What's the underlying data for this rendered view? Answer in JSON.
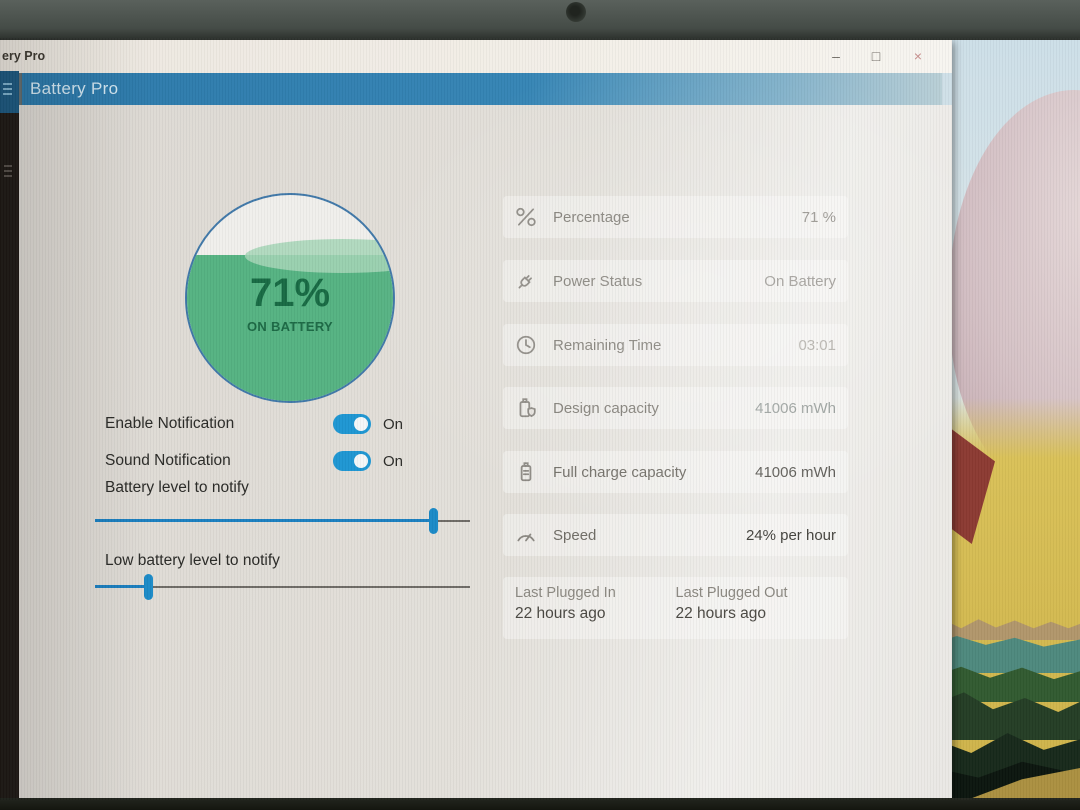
{
  "window": {
    "titlebar_text": "ery Pro",
    "minimize": "–",
    "maximize": "□",
    "close": "×",
    "header_title": "Battery Pro"
  },
  "gauge": {
    "percent": "71%",
    "status": "ON BATTERY",
    "value": 71
  },
  "settings": {
    "toggles": [
      {
        "label": "Enable Notification",
        "state": "On"
      },
      {
        "label": "Sound Notification",
        "state": "On"
      }
    ],
    "sliders": [
      {
        "label": "Battery level to notify",
        "value_pct": 90
      },
      {
        "label": "Low battery level to notify",
        "value_pct": 14
      }
    ]
  },
  "stats": {
    "rows": [
      {
        "icon": "percent-icon",
        "label": "Percentage",
        "value": "71 %"
      },
      {
        "icon": "plug-icon",
        "label": "Power Status",
        "value": "On Battery"
      },
      {
        "icon": "clock-icon",
        "label": "Remaining Time",
        "value": "03:01"
      },
      {
        "icon": "battery-shield-icon",
        "label": "Design capacity",
        "value": "41006 mWh"
      },
      {
        "icon": "battery-icon",
        "label": "Full charge capacity",
        "value": "41006 mWh"
      },
      {
        "icon": "speedometer-icon",
        "label": "Speed",
        "value": "24% per hour"
      }
    ],
    "history": [
      {
        "label": "Last Plugged In",
        "value": "22 hours ago"
      },
      {
        "label": "Last Plugged Out",
        "value": "22 hours ago"
      }
    ]
  },
  "colors": {
    "header_blue": "#2b78a9",
    "toggle_blue": "#1e96d2",
    "slider_blue": "#1b8ac7",
    "gauge_green": "#55b282",
    "gauge_text_green": "#176a43"
  }
}
